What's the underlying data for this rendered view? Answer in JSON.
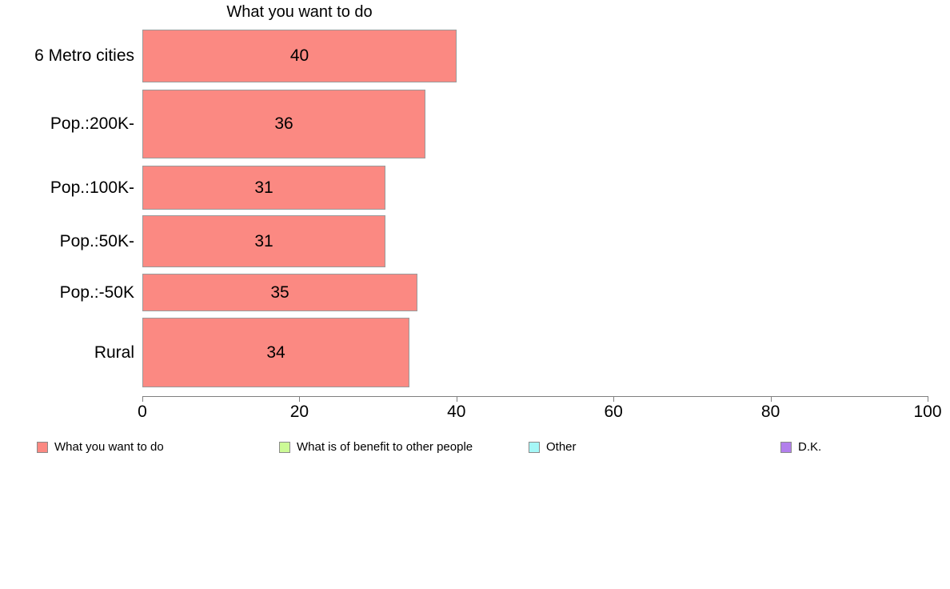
{
  "chart_data": {
    "type": "bar",
    "orientation": "horizontal",
    "title": "What you want to do",
    "categories": [
      "6 Metro cities",
      "Pop.:200K-",
      "Pop.:100K-",
      "Pop.:50K-",
      "Pop.:-50K",
      "Rural"
    ],
    "values": [
      40,
      36,
      31,
      31,
      35,
      34
    ],
    "xlabel": "",
    "ylabel": "",
    "xlim": [
      0,
      100
    ],
    "x_ticks": [
      0,
      20,
      40,
      60,
      80,
      100
    ],
    "grid": false,
    "value_labels_shown": true,
    "bar_color": "#FB8982",
    "bar_border_color": "#9a9a9a",
    "bar_thickness_px": [
      66,
      86,
      55,
      65,
      47,
      87
    ],
    "legend": {
      "position": "bottom",
      "entries": [
        {
          "label": "What you want to do",
          "color": "#FB8982"
        },
        {
          "label": "What is of benefit to other people",
          "color": "#CCFA96"
        },
        {
          "label": "Other",
          "color": "#A5F7F7"
        },
        {
          "label": "D.K.",
          "color": "#B27FEC"
        }
      ]
    }
  }
}
